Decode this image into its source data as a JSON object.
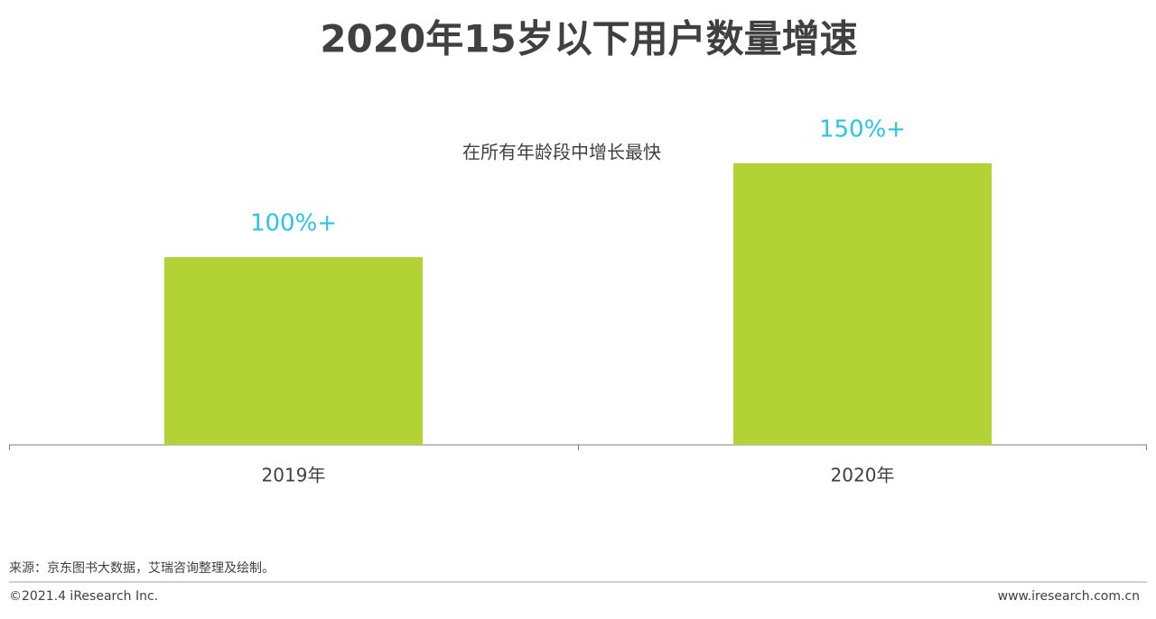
{
  "chart_data": {
    "type": "bar",
    "title": "2020年15岁以下用户数量增速",
    "annotation": "在所有年龄段中增长最快",
    "categories": [
      "2019年",
      "2020年"
    ],
    "values": [
      100,
      150
    ],
    "value_labels": [
      "100%+",
      "150%+"
    ],
    "color": "#b2d235",
    "label_color": "#29c5e6",
    "ylim": [
      0,
      200
    ],
    "source": "来源：京东图书大数据，艾瑞咨询整理及绘制。",
    "copyright": "©2021.4 iResearch Inc.",
    "website": "www.iresearch.com.cn"
  }
}
